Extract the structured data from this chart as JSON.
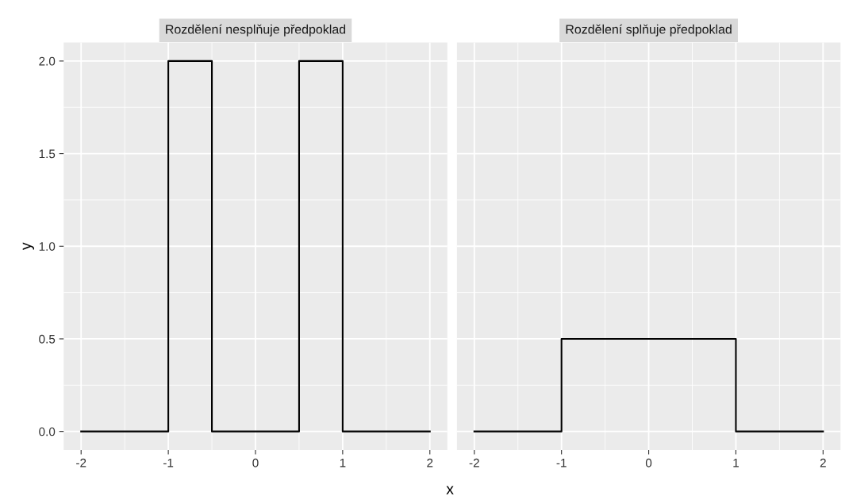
{
  "chart_data": [
    {
      "type": "step",
      "title": "Rozdělení nesplňuje předpoklad",
      "xlabel": "x",
      "ylabel": "y",
      "x": [
        -2,
        -1,
        -0.5,
        0.5,
        1,
        2
      ],
      "series": [
        {
          "color": "#000000",
          "values": [
            0,
            2,
            0,
            2,
            0,
            0
          ]
        }
      ],
      "xlim": [
        -2.2,
        2.2
      ],
      "ylim": [
        -0.1,
        2.1
      ],
      "xticks": [
        -2,
        -1,
        0,
        1,
        2
      ],
      "yticks": [
        {
          "value": 0,
          "label": "0.0"
        },
        {
          "value": 0.5,
          "label": "0.5"
        },
        {
          "value": 1,
          "label": "1.0"
        },
        {
          "value": 1.5,
          "label": "1.5"
        },
        {
          "value": 2,
          "label": "2.0"
        }
      ],
      "grid": true,
      "legend": false
    },
    {
      "type": "step",
      "title": "Rozdělení splňuje předpoklad",
      "x": [
        -2,
        -1,
        1,
        2
      ],
      "series": [
        {
          "color": "#000000",
          "values": [
            0,
            0.5,
            0,
            0
          ]
        }
      ],
      "xlim": [
        -2.2,
        2.2
      ],
      "ylim": [
        -0.1,
        2.1
      ],
      "xticks": [
        -2,
        -1,
        0,
        1,
        2
      ],
      "yticks": [
        0,
        0.5,
        1,
        1.5,
        2
      ],
      "grid": true,
      "legend": false,
      "tick_labels": "x"
    }
  ]
}
